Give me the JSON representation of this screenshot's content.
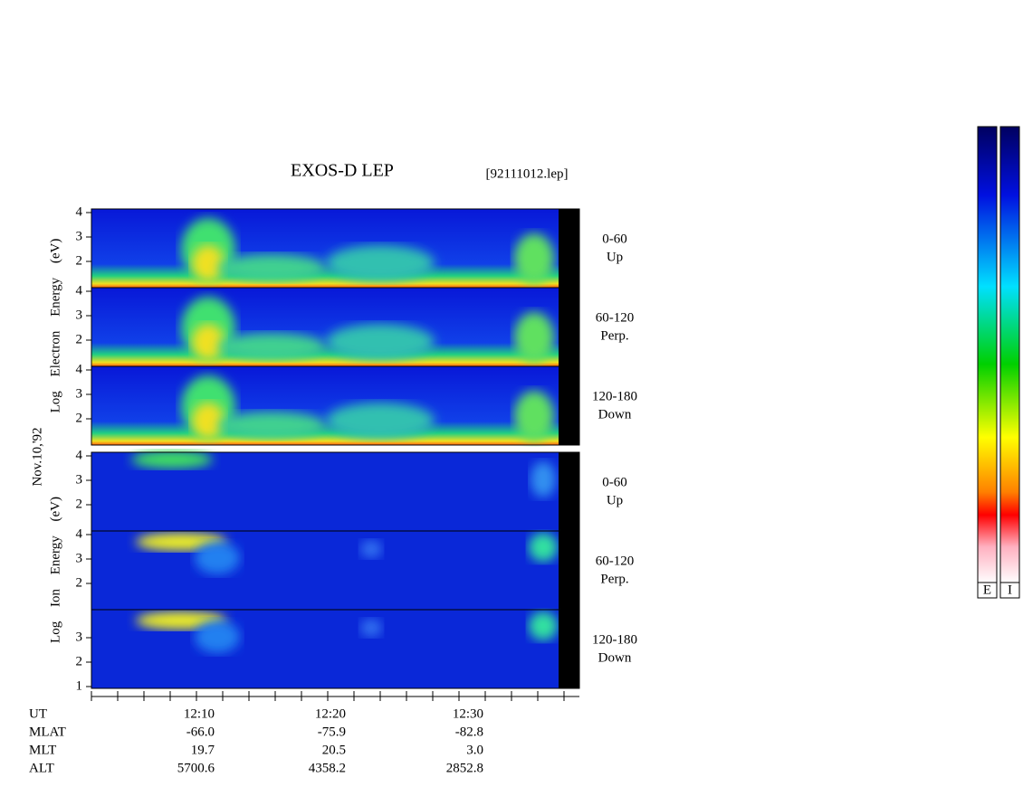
{
  "title": "EXOS-D LEP",
  "file": "[92111012.lep]",
  "date": "Nov.10,'92",
  "electron_axis_label": "Log Electron Energy (eV)",
  "ion_axis_label": "Log Ion Energy (eV)",
  "panels": [
    {
      "ticks": [
        2,
        3,
        4
      ],
      "angle": "0-60",
      "direction": "Up"
    },
    {
      "ticks": [
        2,
        3,
        4
      ],
      "angle": "60-120",
      "direction": "Perp."
    },
    {
      "ticks": [
        2,
        3,
        4
      ],
      "angle": "120-180",
      "direction": "Down"
    },
    {
      "ticks": [
        2,
        3,
        4
      ],
      "angle": "0-60",
      "direction": "Up"
    },
    {
      "ticks": [
        2,
        3,
        4
      ],
      "angle": "60-120",
      "direction": "Perp."
    },
    {
      "ticks": [
        1,
        2,
        3
      ],
      "angle": "120-180",
      "direction": "Down"
    }
  ],
  "rows": [
    {
      "label": "UT",
      "values": [
        "12:10",
        "12:20",
        "12:30"
      ]
    },
    {
      "label": "MLAT",
      "values": [
        "-66.0",
        "-75.9",
        "-82.8"
      ]
    },
    {
      "label": "MLT",
      "values": [
        "19.7",
        "20.5",
        "3.0"
      ]
    },
    {
      "label": "ALT",
      "values": [
        "5700.6",
        "4358.2",
        "2852.8"
      ]
    }
  ],
  "colorbar_labels": [
    "E",
    "I"
  ]
}
